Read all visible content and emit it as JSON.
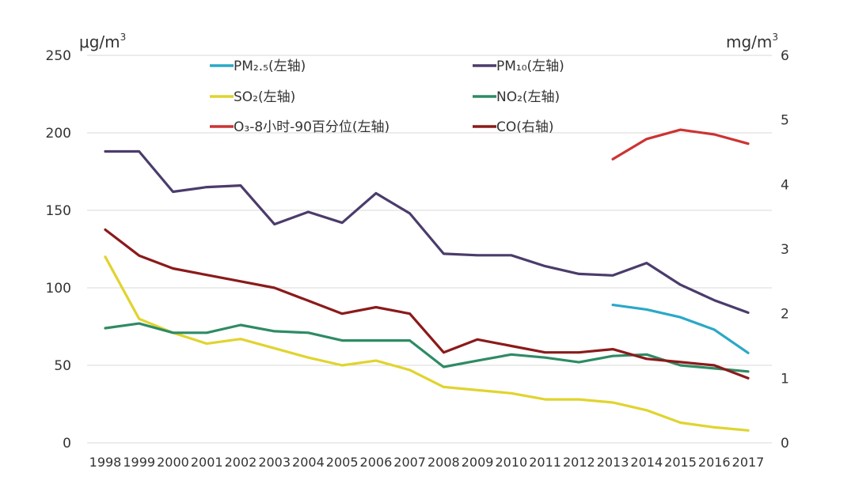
{
  "chart_data": {
    "type": "line",
    "left_unit": "μg/m",
    "left_unit_sup": "3",
    "right_unit": "mg/m",
    "right_unit_sup": "3",
    "categories": [
      "1998",
      "1999",
      "2000",
      "2001",
      "2002",
      "2003",
      "2004",
      "2005",
      "2006",
      "2007",
      "2008",
      "2009",
      "2010",
      "2011",
      "2012",
      "2013",
      "2014",
      "2015",
      "2016",
      "2017"
    ],
    "left_axis": {
      "min": 0,
      "max": 250,
      "ticks": [
        "0",
        "50",
        "100",
        "150",
        "200",
        "250"
      ]
    },
    "right_axis": {
      "min": 0,
      "max": 6,
      "ticks": [
        "0",
        "1",
        "2",
        "3",
        "4",
        "5",
        "6"
      ]
    },
    "grid": true,
    "legend_position": "top",
    "series": [
      {
        "key": "pm25",
        "label": "PM₂.₅(左轴)",
        "axis": "left",
        "color": "#2aa8c8",
        "values": [
          null,
          null,
          null,
          null,
          null,
          null,
          null,
          null,
          null,
          null,
          null,
          null,
          null,
          null,
          null,
          89,
          86,
          81,
          73,
          58
        ]
      },
      {
        "key": "pm10",
        "label": "PM₁₀(左轴)",
        "axis": "left",
        "color": "#4b3c6b",
        "values": [
          188,
          188,
          162,
          165,
          166,
          141,
          149,
          142,
          161,
          148,
          122,
          121,
          121,
          114,
          109,
          108,
          116,
          102,
          92,
          84
        ]
      },
      {
        "key": "so2",
        "label": "SO₂(左轴)",
        "axis": "left",
        "color": "#e0d42e",
        "values": [
          120,
          80,
          71,
          64,
          67,
          61,
          55,
          50,
          53,
          47,
          36,
          34,
          32,
          28,
          28,
          26,
          21,
          13,
          10,
          8
        ]
      },
      {
        "key": "no2",
        "label": "NO₂(左轴)",
        "axis": "left",
        "color": "#2e8b64",
        "values": [
          74,
          77,
          71,
          71,
          76,
          72,
          71,
          66,
          66,
          66,
          49,
          53,
          57,
          55,
          52,
          56,
          57,
          50,
          48,
          46
        ]
      },
      {
        "key": "o3",
        "label": "O₃-8小时-90百分位(左轴)",
        "axis": "left",
        "color": "#cc3333",
        "values": [
          null,
          null,
          null,
          null,
          null,
          null,
          null,
          null,
          null,
          null,
          null,
          null,
          null,
          null,
          null,
          183,
          196,
          202,
          199,
          193
        ]
      },
      {
        "key": "co",
        "label": "CO(右轴)",
        "axis": "right",
        "color": "#8b1a1a",
        "values": [
          3.3,
          2.9,
          2.7,
          2.6,
          2.5,
          2.4,
          2.2,
          2.0,
          2.1,
          2.0,
          1.4,
          1.6,
          1.5,
          1.4,
          1.4,
          1.45,
          1.3,
          1.25,
          1.2,
          1.0
        ]
      }
    ]
  }
}
